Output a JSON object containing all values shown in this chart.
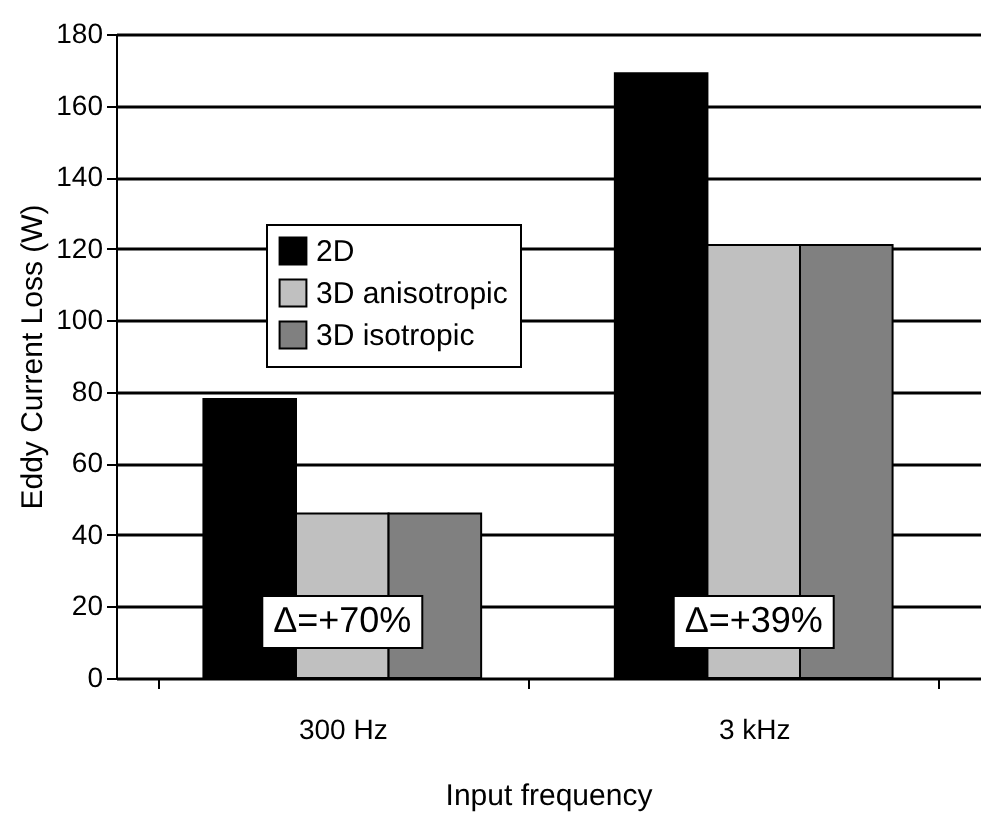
{
  "chart_data": {
    "type": "bar",
    "xlabel": "Input frequency",
    "ylabel": "Eddy Current Loss (W)",
    "categories": [
      "300 Hz",
      "3 kHz"
    ],
    "series": [
      {
        "name": "2D",
        "color": "#000000",
        "values": [
          78,
          169
        ]
      },
      {
        "name": "3D anisotropic",
        "color": "#c0c0c0",
        "values": [
          46,
          121
        ]
      },
      {
        "name": "3D isotropic",
        "color": "#808080",
        "values": [
          46,
          121
        ]
      }
    ],
    "ylim": [
      0,
      180
    ],
    "yticks": [
      0,
      20,
      40,
      60,
      80,
      100,
      120,
      140,
      160,
      180
    ],
    "grid": "y",
    "legend": "top left",
    "annotations": [
      "Δ=+70%",
      "Δ=+39%"
    ]
  }
}
